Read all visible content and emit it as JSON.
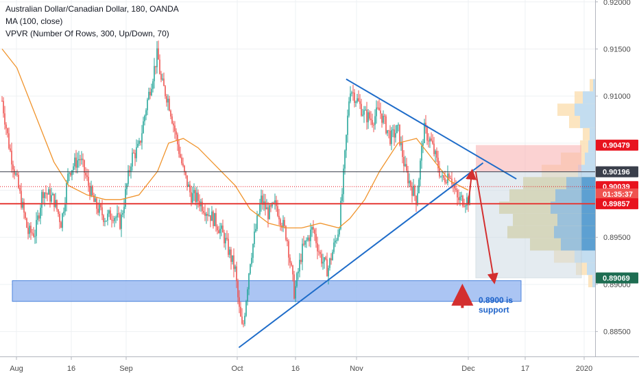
{
  "header": {
    "symbol_line": "Australian Dollar/Canadian Dollar, 180, OANDA",
    "ma_line": "MA (100, close)",
    "vpvr_line": "VPVR (Number Of Rows, 300, Up/Down, 70)"
  },
  "annotation": {
    "line1": "0.8900 is",
    "line2": "support"
  },
  "colors": {
    "up": "#26a69a",
    "down": "#ef5350",
    "ma": "#f0932b",
    "triangle": "#1e6cc9",
    "support_zone": "#9dbcf2",
    "resistance_line": "#e53935",
    "arrow": "#d32f2f"
  },
  "chart_data": {
    "type": "candlestick",
    "title": "Australian Dollar/Canadian Dollar, 180, OANDA",
    "xlabel": "",
    "ylabel": "",
    "ylim": [
      0.8825,
      0.9202
    ],
    "grid": true,
    "x_ticks": [
      "Aug",
      "16",
      "Sep",
      "16",
      "Oct",
      "16",
      "Nov",
      "Dec",
      "17",
      "2020"
    ],
    "y_ticks": [
      0.885,
      0.89,
      0.895,
      0.9,
      0.905,
      0.91,
      0.915,
      0.92
    ],
    "y_tick_labels": [
      "0.88500",
      "0.89000",
      "0.89500",
      "0.90000",
      "0.90500",
      "0.91000",
      "0.91500",
      "0.92000"
    ],
    "price_path": [
      [
        "2019-07-29",
        0.9095
      ],
      [
        "2019-07-31",
        0.9045
      ],
      [
        "2019-08-02",
        0.901
      ],
      [
        "2019-08-05",
        0.8955
      ],
      [
        "2019-08-07",
        0.8955
      ],
      [
        "2019-08-09",
        0.9
      ],
      [
        "2019-08-12",
        0.899
      ],
      [
        "2019-08-14",
        0.8965
      ],
      [
        "2019-08-16",
        0.902
      ],
      [
        "2019-08-19",
        0.9035
      ],
      [
        "2019-08-21",
        0.901
      ],
      [
        "2019-08-23",
        0.8985
      ],
      [
        "2019-08-26",
        0.897
      ],
      [
        "2019-08-28",
        0.8975
      ],
      [
        "2019-08-30",
        0.8965
      ],
      [
        "2019-09-02",
        0.9035
      ],
      [
        "2019-09-04",
        0.9045
      ],
      [
        "2019-09-06",
        0.909
      ],
      [
        "2019-09-09",
        0.9145
      ],
      [
        "2019-09-10",
        0.9115
      ],
      [
        "2019-09-12",
        0.9095
      ],
      [
        "2019-09-16",
        0.902
      ],
      [
        "2019-09-18",
        0.8995
      ],
      [
        "2019-09-20",
        0.899
      ],
      [
        "2019-09-23",
        0.8975
      ],
      [
        "2019-09-25",
        0.8965
      ],
      [
        "2019-09-27",
        0.895
      ],
      [
        "2019-09-30",
        0.8915
      ],
      [
        "2019-10-01",
        0.8875
      ],
      [
        "2019-10-02",
        0.885
      ],
      [
        "2019-10-04",
        0.8925
      ],
      [
        "2019-10-07",
        0.899
      ],
      [
        "2019-10-09",
        0.8975
      ],
      [
        "2019-10-11",
        0.8985
      ],
      [
        "2019-10-14",
        0.895
      ],
      [
        "2019-10-16",
        0.889
      ],
      [
        "2019-10-18",
        0.8935
      ],
      [
        "2019-10-21",
        0.896
      ],
      [
        "2019-10-23",
        0.893
      ],
      [
        "2019-10-25",
        0.8915
      ],
      [
        "2019-10-28",
        0.896
      ],
      [
        "2019-10-29",
        0.9
      ],
      [
        "2019-10-31",
        0.911
      ],
      [
        "2019-11-04",
        0.908
      ],
      [
        "2019-11-06",
        0.9075
      ],
      [
        "2019-11-08",
        0.9085
      ],
      [
        "2019-11-11",
        0.9055
      ],
      [
        "2019-11-13",
        0.9065
      ],
      [
        "2019-11-15",
        0.902
      ],
      [
        "2019-11-18",
        0.899
      ],
      [
        "2019-11-20",
        0.9065
      ],
      [
        "2019-11-22",
        0.905
      ],
      [
        "2019-11-25",
        0.901
      ],
      [
        "2019-11-27",
        0.902
      ],
      [
        "2019-11-29",
        0.899
      ]
    ],
    "series": [
      {
        "name": "MA (100, close)",
        "type": "line",
        "points": [
          [
            "2019-07-29",
            0.915
          ],
          [
            "2019-08-02",
            0.913
          ],
          [
            "2019-08-07",
            0.908
          ],
          [
            "2019-08-12",
            0.903
          ],
          [
            "2019-08-16",
            0.9005
          ],
          [
            "2019-08-21",
            0.8995
          ],
          [
            "2019-08-26",
            0.899
          ],
          [
            "2019-08-30",
            0.899
          ],
          [
            "2019-09-04",
            0.8995
          ],
          [
            "2019-09-09",
            0.902
          ],
          [
            "2019-09-12",
            0.905
          ],
          [
            "2019-09-16",
            0.9055
          ],
          [
            "2019-09-20",
            0.9045
          ],
          [
            "2019-09-25",
            0.9025
          ],
          [
            "2019-09-30",
            0.9005
          ],
          [
            "2019-10-04",
            0.898
          ],
          [
            "2019-10-09",
            0.8965
          ],
          [
            "2019-10-14",
            0.896
          ],
          [
            "2019-10-18",
            0.896
          ],
          [
            "2019-10-23",
            0.8965
          ],
          [
            "2019-10-28",
            0.896
          ],
          [
            "2019-10-31",
            0.897
          ],
          [
            "2019-11-04",
            0.899
          ],
          [
            "2019-11-08",
            0.902
          ],
          [
            "2019-11-13",
            0.905
          ],
          [
            "2019-11-18",
            0.9055
          ],
          [
            "2019-11-22",
            0.9035
          ],
          [
            "2019-11-27",
            0.901
          ],
          [
            "2019-12-02",
            0.9
          ]
        ]
      }
    ],
    "drawings": [
      {
        "kind": "trendline",
        "points": [
          [
            "2019-10-01",
            0.8833
          ],
          [
            "2019-12-06",
            0.9029
          ]
        ]
      },
      {
        "kind": "trendline",
        "points": [
          [
            "2019-10-30",
            0.9118
          ],
          [
            "2019-12-15",
            0.9012
          ]
        ]
      },
      {
        "kind": "horizontal_line",
        "price": 0.89857
      },
      {
        "kind": "zone",
        "from": 0.8882,
        "to": 0.8904
      },
      {
        "kind": "zone",
        "from": 0.902,
        "to": 0.9048
      },
      {
        "kind": "zone",
        "from": 0.8907,
        "to": 0.902
      },
      {
        "kind": "arrow",
        "from": [
          "2019-12-02",
          0.8985
        ],
        "to": [
          "2019-12-03",
          0.902
        ]
      },
      {
        "kind": "arrow",
        "from": [
          "2019-12-04",
          0.902
        ],
        "to": [
          "2019-12-09",
          0.8903
        ]
      },
      {
        "kind": "arrow",
        "from": [
          "2019-12-03",
          0.8875
        ],
        "to": [
          "2019-12-03",
          0.8895
        ]
      }
    ],
    "price_labels": [
      {
        "price": 0.90479,
        "text": "0.90479",
        "bg": "#e8131e",
        "fg": "#ffffff"
      },
      {
        "price": 0.90196,
        "text": "0.90196",
        "bg": "#3a3f4b",
        "fg": "#ffffff"
      },
      {
        "price": 0.90039,
        "text": "0.90039",
        "bg": "#e8131e",
        "fg": "#ffffff"
      },
      {
        "price": 0.8996,
        "text": "01:35:37",
        "bg": "#ef5350",
        "fg": "#ffffff"
      },
      {
        "price": 0.89857,
        "text": "0.89857",
        "bg": "#e8131e",
        "fg": "#ffffff"
      },
      {
        "price": 0.89069,
        "text": "0.89069",
        "bg": "#1e6d52",
        "fg": "#ffffff"
      }
    ]
  }
}
